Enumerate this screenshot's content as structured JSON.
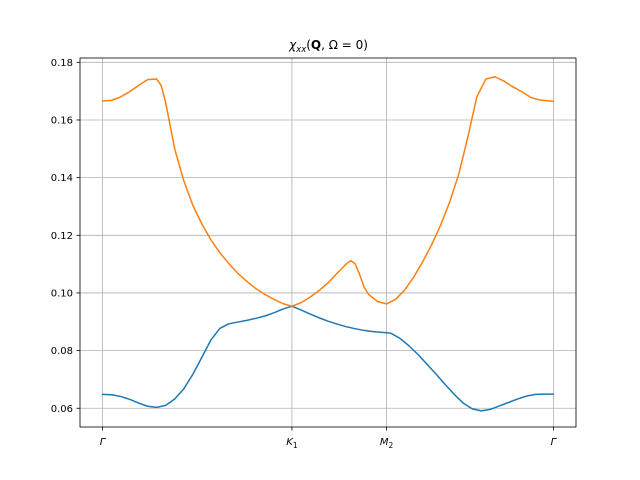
{
  "chart_data": {
    "type": "line",
    "title": "χ_xx(Q, Ω = 0)",
    "title_parts": {
      "chi": "χ",
      "sub": "xx",
      "open": "(",
      "bold": "Q",
      "rest": ", Ω = 0)"
    },
    "xlabel": "",
    "ylabel": "",
    "x_ticks": [
      {
        "x": 0.0,
        "base": "Γ",
        "sub": ""
      },
      {
        "x": 0.42,
        "base": "K",
        "sub": "1"
      },
      {
        "x": 0.63,
        "base": "M",
        "sub": "2"
      },
      {
        "x": 1.0,
        "base": "Γ",
        "sub": ""
      }
    ],
    "xlim": [
      -0.05,
      1.05
    ],
    "ylim": [
      0.0535,
      0.1815
    ],
    "y_ticks": [
      0.06,
      0.08,
      0.1,
      0.12,
      0.14,
      0.16,
      0.18
    ],
    "y_tick_labels": [
      "0.06",
      "0.08",
      "0.10",
      "0.12",
      "0.14",
      "0.16",
      "0.18"
    ],
    "grid": true,
    "series": [
      {
        "color": "#1f77b4",
        "points": [
          [
            0.0,
            0.0648
          ],
          [
            0.02,
            0.0647
          ],
          [
            0.04,
            0.0641
          ],
          [
            0.06,
            0.0631
          ],
          [
            0.08,
            0.0618
          ],
          [
            0.1,
            0.0607
          ],
          [
            0.12,
            0.0603
          ],
          [
            0.14,
            0.061
          ],
          [
            0.16,
            0.0632
          ],
          [
            0.18,
            0.0667
          ],
          [
            0.2,
            0.0717
          ],
          [
            0.22,
            0.0776
          ],
          [
            0.24,
            0.0836
          ],
          [
            0.26,
            0.0877
          ],
          [
            0.28,
            0.0893
          ],
          [
            0.3,
            0.0899
          ],
          [
            0.32,
            0.0905
          ],
          [
            0.34,
            0.0912
          ],
          [
            0.36,
            0.092
          ],
          [
            0.38,
            0.0931
          ],
          [
            0.4,
            0.0944
          ],
          [
            0.42,
            0.0954
          ],
          [
            0.44,
            0.0941
          ],
          [
            0.46,
            0.0927
          ],
          [
            0.48,
            0.0914
          ],
          [
            0.5,
            0.0902
          ],
          [
            0.52,
            0.0892
          ],
          [
            0.54,
            0.0883
          ],
          [
            0.56,
            0.0876
          ],
          [
            0.58,
            0.087
          ],
          [
            0.6,
            0.0866
          ],
          [
            0.63,
            0.0862
          ],
          [
            0.64,
            0.086
          ],
          [
            0.66,
            0.0842
          ],
          [
            0.68,
            0.0816
          ],
          [
            0.7,
            0.0786
          ],
          [
            0.72,
            0.0752
          ],
          [
            0.74,
            0.0718
          ],
          [
            0.76,
            0.0682
          ],
          [
            0.78,
            0.0648
          ],
          [
            0.8,
            0.0618
          ],
          [
            0.82,
            0.0598
          ],
          [
            0.84,
            0.0591
          ],
          [
            0.86,
            0.0596
          ],
          [
            0.88,
            0.0608
          ],
          [
            0.9,
            0.062
          ],
          [
            0.92,
            0.0632
          ],
          [
            0.94,
            0.0642
          ],
          [
            0.96,
            0.0648
          ],
          [
            0.98,
            0.0649
          ],
          [
            1.0,
            0.0649
          ]
        ]
      },
      {
        "color": "#ff7f0e",
        "points": [
          [
            0.0,
            0.1666
          ],
          [
            0.02,
            0.1668
          ],
          [
            0.04,
            0.168
          ],
          [
            0.06,
            0.1698
          ],
          [
            0.08,
            0.172
          ],
          [
            0.1,
            0.174
          ],
          [
            0.12,
            0.1742
          ],
          [
            0.13,
            0.172
          ],
          [
            0.14,
            0.166
          ],
          [
            0.15,
            0.158
          ],
          [
            0.16,
            0.15
          ],
          [
            0.18,
            0.139
          ],
          [
            0.2,
            0.1305
          ],
          [
            0.22,
            0.124
          ],
          [
            0.24,
            0.1185
          ],
          [
            0.26,
            0.114
          ],
          [
            0.28,
            0.1102
          ],
          [
            0.3,
            0.1068
          ],
          [
            0.32,
            0.104
          ],
          [
            0.34,
            0.1015
          ],
          [
            0.36,
            0.0995
          ],
          [
            0.38,
            0.0978
          ],
          [
            0.4,
            0.0963
          ],
          [
            0.42,
            0.0954
          ],
          [
            0.44,
            0.0966
          ],
          [
            0.46,
            0.0985
          ],
          [
            0.48,
            0.1008
          ],
          [
            0.5,
            0.1035
          ],
          [
            0.52,
            0.1068
          ],
          [
            0.54,
            0.11
          ],
          [
            0.55,
            0.1112
          ],
          [
            0.56,
            0.1102
          ],
          [
            0.57,
            0.1065
          ],
          [
            0.58,
            0.102
          ],
          [
            0.59,
            0.0995
          ],
          [
            0.61,
            0.097
          ],
          [
            0.63,
            0.0962
          ],
          [
            0.65,
            0.0978
          ],
          [
            0.67,
            0.101
          ],
          [
            0.69,
            0.1055
          ],
          [
            0.71,
            0.1108
          ],
          [
            0.73,
            0.1168
          ],
          [
            0.75,
            0.1236
          ],
          [
            0.77,
            0.1316
          ],
          [
            0.79,
            0.1412
          ],
          [
            0.81,
            0.154
          ],
          [
            0.83,
            0.168
          ],
          [
            0.85,
            0.1742
          ],
          [
            0.87,
            0.175
          ],
          [
            0.89,
            0.1735
          ],
          [
            0.91,
            0.1715
          ],
          [
            0.93,
            0.1698
          ],
          [
            0.95,
            0.1678
          ],
          [
            0.97,
            0.1669
          ],
          [
            1.0,
            0.1665
          ]
        ]
      }
    ]
  }
}
